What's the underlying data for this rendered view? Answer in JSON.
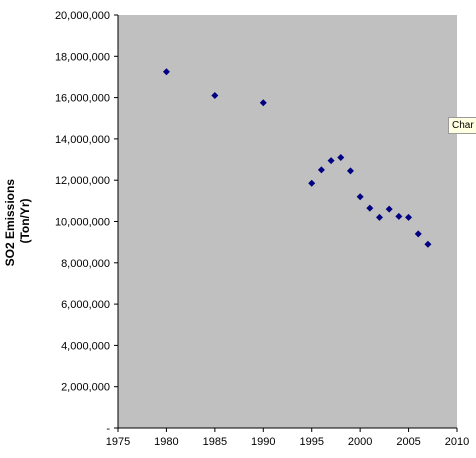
{
  "chart_data": {
    "type": "scatter",
    "title": "",
    "xlabel": "",
    "ylabel_lines": [
      "SO2 Emissions",
      "(Ton/Yr)"
    ],
    "xlim": [
      1975,
      2010
    ],
    "ylim": [
      0,
      20000000
    ],
    "x_ticks": [
      "1975",
      "1980",
      "1985",
      "1990",
      "1995",
      "2000",
      "2005",
      "2010"
    ],
    "y_ticks": [
      "-",
      "2,000,000",
      "4,000,000",
      "6,000,000",
      "8,000,000",
      "10,000,000",
      "12,000,000",
      "14,000,000",
      "16,000,000",
      "18,000,000",
      "20,000,000"
    ],
    "grid": false,
    "legend": "none",
    "plot_background": "#c0c0c0",
    "marker_color": "#000080",
    "marker": "diamond",
    "series": [
      {
        "points": [
          {
            "x": 1980,
            "y": 17250000
          },
          {
            "x": 1985,
            "y": 16100000
          },
          {
            "x": 1990,
            "y": 15750000
          },
          {
            "x": 1995,
            "y": 11850000
          },
          {
            "x": 1996,
            "y": 12500000
          },
          {
            "x": 1997,
            "y": 12950000
          },
          {
            "x": 1998,
            "y": 13100000
          },
          {
            "x": 1999,
            "y": 12450000
          },
          {
            "x": 2000,
            "y": 11200000
          },
          {
            "x": 2001,
            "y": 10650000
          },
          {
            "x": 2002,
            "y": 10200000
          },
          {
            "x": 2003,
            "y": 10600000
          },
          {
            "x": 2004,
            "y": 10250000
          },
          {
            "x": 2005,
            "y": 10200000
          },
          {
            "x": 2006,
            "y": 9400000
          },
          {
            "x": 2007,
            "y": 8900000
          }
        ]
      }
    ]
  },
  "tooltip": {
    "text": "Char"
  }
}
